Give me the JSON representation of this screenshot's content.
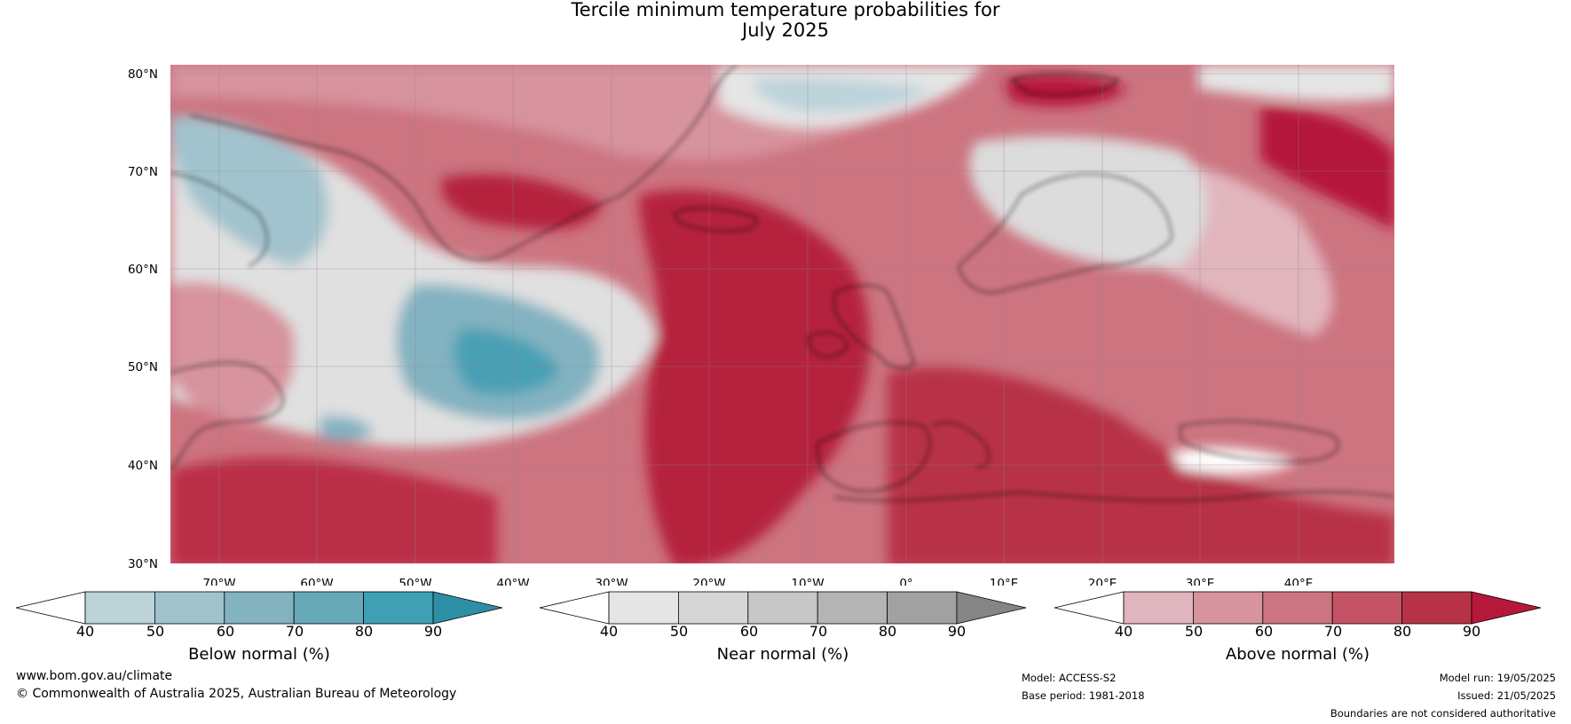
{
  "title": {
    "line1": "Tercile minimum temperature probabilities for",
    "line2": "July 2025"
  },
  "map": {
    "region": "North Atlantic and Europe",
    "lat_range": [
      30,
      80
    ],
    "lon_range": [
      -75,
      50
    ],
    "lat_labels": [
      "80°N",
      "70°N",
      "60°N",
      "50°N",
      "40°N",
      "30°N"
    ],
    "lon_labels": [
      "70°W",
      "60°W",
      "50°W",
      "40°W",
      "30°W",
      "20°W",
      "10°W",
      "0°",
      "10°E",
      "20°E",
      "30°E",
      "40°E"
    ]
  },
  "colorbars": [
    {
      "label": "Below normal (%)",
      "ticks": [
        "40",
        "50",
        "60",
        "70",
        "80",
        "90"
      ],
      "colors": [
        "#ffffff",
        "#bcd3da",
        "#a1c3cd",
        "#83b2c1",
        "#66a9b9",
        "#3f9fb3",
        "#2d8fa5"
      ]
    },
    {
      "label": "Near normal (%)",
      "ticks": [
        "40",
        "50",
        "60",
        "70",
        "80",
        "90"
      ],
      "colors": [
        "#ffffff",
        "#e5e5e5",
        "#d6d6d6",
        "#c7c7c7",
        "#b4b4b4",
        "#a1a1a1",
        "#858585"
      ]
    },
    {
      "label": "Above normal (%)",
      "ticks": [
        "40",
        "50",
        "60",
        "70",
        "80",
        "90"
      ],
      "colors": [
        "#ffffff",
        "#e1b5bd",
        "#d7939e",
        "#cc747f",
        "#c45465",
        "#b83246",
        "#b5183a"
      ]
    }
  ],
  "footer": {
    "website": "www.bom.gov.au/climate",
    "copyright": "© Commonwealth of Australia 2025, Australian Bureau of Meteorology",
    "model": "Model: ACCESS-S2",
    "base_period": "Base period: 1981-2018",
    "model_run": "Model run: 19/05/2025",
    "issued": "Issued: 21/05/2025",
    "disclaimer": "Boundaries are not considered authoritative"
  }
}
